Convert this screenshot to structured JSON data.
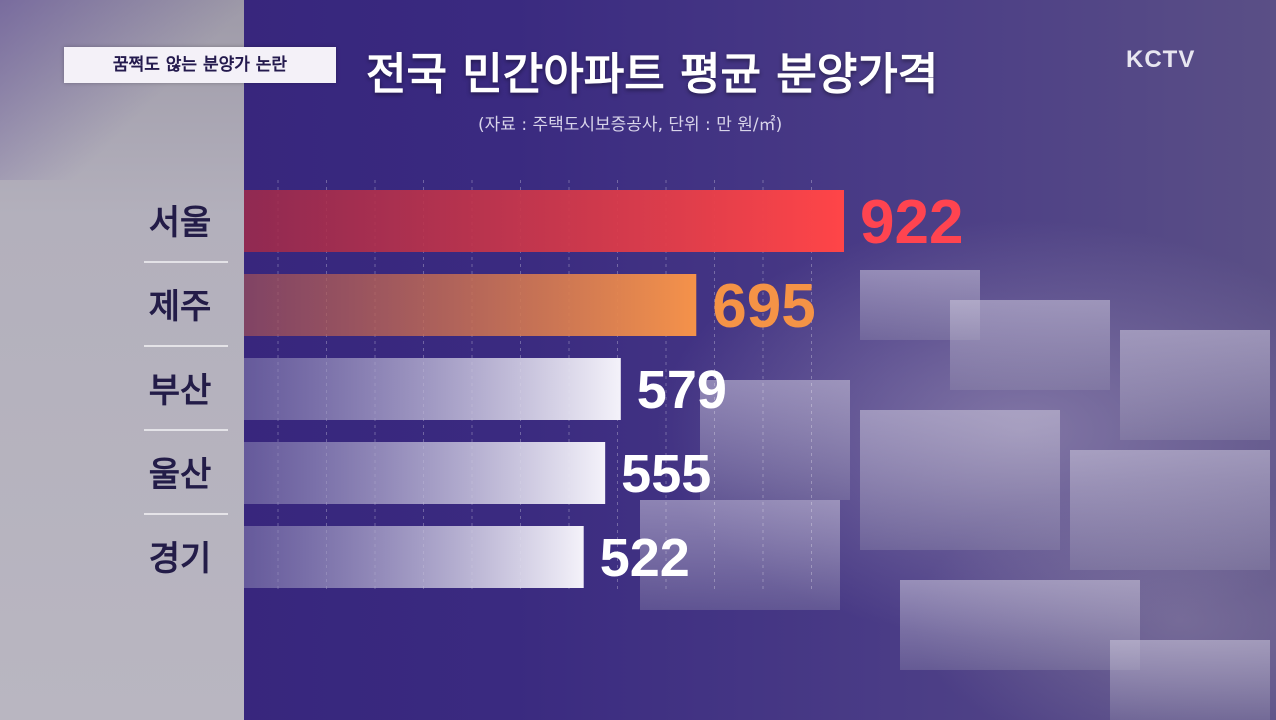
{
  "header": {
    "topic_label": "꿈쩍도 않는 분양가 논란",
    "logo": "KCTV"
  },
  "chart_data": {
    "type": "bar",
    "orientation": "horizontal",
    "title": "전국 민간아파트 평균 분양가격",
    "subtitle": "(자료 : 주택도시보증공사, 단위 : 만 원/㎡)",
    "categories": [
      "서울",
      "제주",
      "부산",
      "울산",
      "경기"
    ],
    "values": [
      922,
      695,
      579,
      555,
      522
    ],
    "value_labels": [
      "922",
      "695",
      "579",
      "555",
      "522"
    ],
    "xlim": [
      0,
      922
    ],
    "grid": true,
    "colors": {
      "서울": "#f0424e",
      "제주": "#f08a40",
      "default": "#f2f0f8",
      "label_seoul": "#ff4450",
      "label_jeju": "#f59346",
      "label_default": "#ffffff",
      "category_text": "#231c48"
    }
  }
}
